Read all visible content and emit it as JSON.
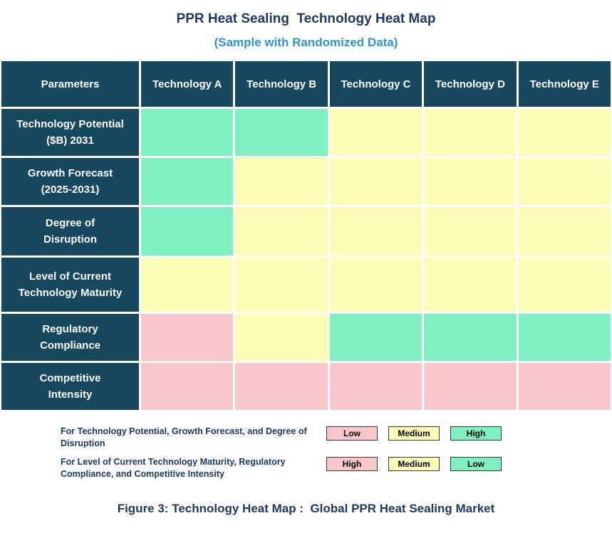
{
  "title": "PPR Heat Sealing  Technology Heat Map",
  "subtitle": "(Sample with Randomized Data)",
  "caption": "Figure 3: Technology Heat Map :  Global PPR Heat Sealing Market",
  "colors": {
    "header_bg": "#17485e",
    "title_text": "#1f3864",
    "subtitle_text": "#2b96d3",
    "low": "#f9c6cc",
    "medium": "#fbfcb5",
    "high": "#7ff0c1"
  },
  "table": {
    "header": [
      "Parameters",
      "Technology A",
      "Technology B",
      "Technology C",
      "Technology D",
      "Technology E"
    ],
    "rows": [
      {
        "lines": [
          "Technology Potential",
          "($B) 2031"
        ],
        "cells": [
          "high",
          "high",
          "medium",
          "medium",
          "medium"
        ]
      },
      {
        "lines": [
          "Growth Forecast",
          "(2025-2031)"
        ],
        "cells": [
          "high",
          "medium",
          "medium",
          "medium",
          "medium"
        ]
      },
      {
        "lines": [
          "Degree of",
          "Disruption"
        ],
        "cells": [
          "high",
          "medium",
          "medium",
          "medium",
          "medium"
        ]
      },
      {
        "lines": [
          "Level of Current",
          "Technology Maturity"
        ],
        "cells": [
          "medium",
          "medium",
          "medium",
          "medium",
          "medium"
        ]
      },
      {
        "lines": [
          "Regulatory",
          "Compliance"
        ],
        "cells": [
          "low",
          "medium",
          "high",
          "high",
          "high"
        ]
      },
      {
        "lines": [
          "Competitive",
          "Intensity"
        ],
        "cells": [
          "low",
          "low",
          "low",
          "low",
          "low"
        ]
      }
    ]
  },
  "legend": {
    "row1": {
      "text": "For Technology Potential, Growth Forecast, and Degree of Disruption",
      "chips": [
        {
          "label": "Low",
          "color": "low"
        },
        {
          "label": "Medium",
          "color": "medium"
        },
        {
          "label": "High",
          "color": "high"
        }
      ]
    },
    "row2": {
      "text": "For Level of Current Technology Maturity, Regulatory Compliance, and Competitive Intensity",
      "chips": [
        {
          "label": "High",
          "color": "low"
        },
        {
          "label": "Medium",
          "color": "medium"
        },
        {
          "label": "Low",
          "color": "high"
        }
      ]
    }
  },
  "chart_data": {
    "type": "heatmap",
    "title": "PPR Heat Sealing Technology Heat Map",
    "subtitle": "(Sample with Randomized Data)",
    "columns": [
      "Technology A",
      "Technology B",
      "Technology C",
      "Technology D",
      "Technology E"
    ],
    "rows": [
      "Technology Potential ($B) 2031",
      "Growth Forecast (2025-2031)",
      "Degree of Disruption",
      "Level of Current Technology Maturity",
      "Regulatory Compliance",
      "Competitive Intensity"
    ],
    "cell_colors": [
      [
        "green",
        "green",
        "yellow",
        "yellow",
        "yellow"
      ],
      [
        "green",
        "yellow",
        "yellow",
        "yellow",
        "yellow"
      ],
      [
        "green",
        "yellow",
        "yellow",
        "yellow",
        "yellow"
      ],
      [
        "yellow",
        "yellow",
        "yellow",
        "yellow",
        "yellow"
      ],
      [
        "pink",
        "yellow",
        "green",
        "green",
        "green"
      ],
      [
        "pink",
        "pink",
        "pink",
        "pink",
        "pink"
      ]
    ],
    "values": [
      [
        "High",
        "High",
        "Medium",
        "Medium",
        "Medium"
      ],
      [
        "High",
        "Medium",
        "Medium",
        "Medium",
        "Medium"
      ],
      [
        "High",
        "Medium",
        "Medium",
        "Medium",
        "Medium"
      ],
      [
        "Medium",
        "Medium",
        "Medium",
        "Medium",
        "Medium"
      ],
      [
        "High",
        "Medium",
        "Low",
        "Low",
        "Low"
      ],
      [
        "High",
        "High",
        "High",
        "High",
        "High"
      ]
    ],
    "legend": [
      {
        "applies_to": "Technology Potential, Growth Forecast, Degree of Disruption",
        "mapping": {
          "Low": "pink",
          "Medium": "yellow",
          "High": "green"
        }
      },
      {
        "applies_to": "Level of Current Technology Maturity, Regulatory Compliance, Competitive Intensity",
        "mapping": {
          "High": "pink",
          "Medium": "yellow",
          "Low": "green"
        }
      }
    ]
  }
}
